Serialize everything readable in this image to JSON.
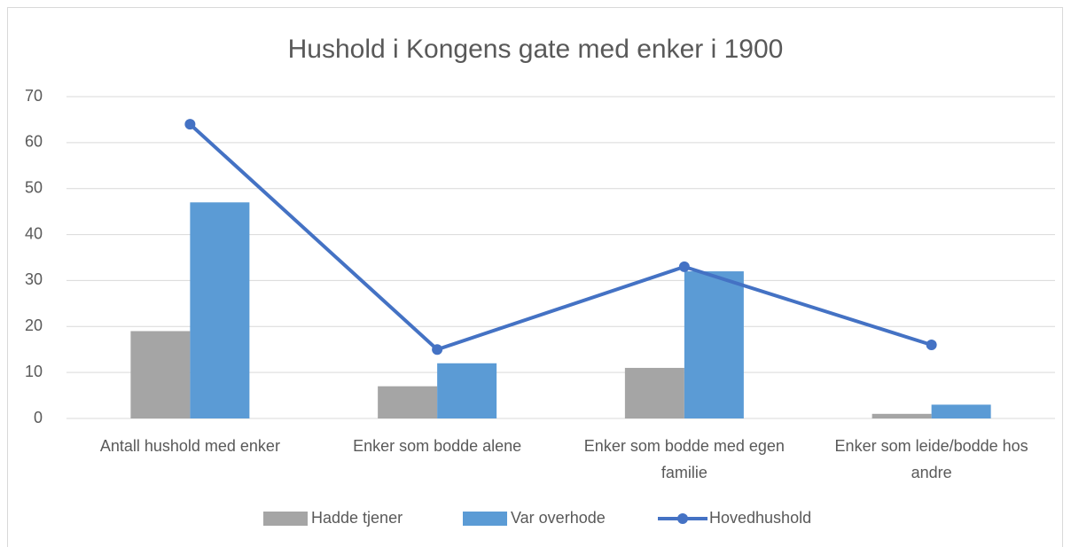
{
  "chart_data": {
    "type": "bar",
    "title": "Hushold i Kongens gate med enker i 1900",
    "categories": [
      "Antall hushold med enker",
      "Enker som bodde alene",
      "Enker som bodde med egen familie",
      "Enker som leide/bodde hos andre"
    ],
    "series": [
      {
        "name": "Hadde tjener",
        "type": "bar",
        "color": "#a5a5a5",
        "values": [
          19,
          7,
          11,
          1
        ]
      },
      {
        "name": "Var overhode",
        "type": "bar",
        "color": "#5b9bd5",
        "values": [
          47,
          12,
          32,
          3
        ]
      },
      {
        "name": "Hovedhushold",
        "type": "line",
        "color": "#4472c4",
        "values": [
          64,
          15,
          33,
          16
        ]
      }
    ],
    "ylim": [
      0,
      70
    ],
    "yticks": [
      0,
      10,
      20,
      30,
      40,
      50,
      60,
      70
    ],
    "grid": true,
    "legend": "bottom"
  }
}
